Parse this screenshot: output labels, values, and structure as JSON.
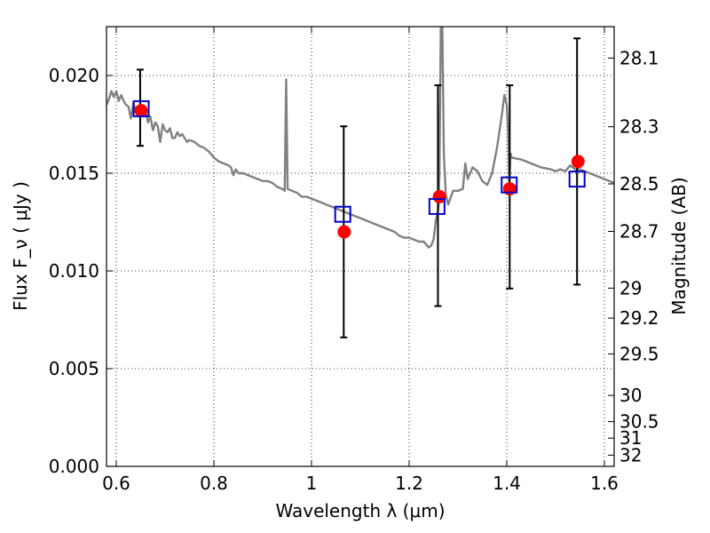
{
  "chart_data": {
    "type": "scatter",
    "title": "",
    "xlabel": "Wavelength  λ (μm)",
    "ylabel": "Flux  F_ν  ( μJy )",
    "ylabel_right": "Magnitude (AB)",
    "xlim": [
      0.58,
      1.62
    ],
    "ylim": [
      0.0,
      0.0225
    ],
    "grid": true,
    "legend": "none",
    "x_ticks": [
      {
        "value": 0.6,
        "label": "0.6"
      },
      {
        "value": 0.8,
        "label": "0.8"
      },
      {
        "value": 1.0,
        "label": "1"
      },
      {
        "value": 1.2,
        "label": "1.2"
      },
      {
        "value": 1.4,
        "label": "1.4"
      },
      {
        "value": 1.6,
        "label": "1.6"
      }
    ],
    "y_ticks": [
      {
        "value": 0.0,
        "label": "0.000"
      },
      {
        "value": 0.005,
        "label": "0.005"
      },
      {
        "value": 0.01,
        "label": "0.010"
      },
      {
        "value": 0.015,
        "label": "0.015"
      },
      {
        "value": 0.02,
        "label": "0.020"
      }
    ],
    "mag_ticks": [
      {
        "value": 28.1,
        "label": "28.1"
      },
      {
        "value": 28.3,
        "label": "28.3"
      },
      {
        "value": 28.5,
        "label": "28.5"
      },
      {
        "value": 28.7,
        "label": "28.7"
      },
      {
        "value": 29.0,
        "label": "29"
      },
      {
        "value": 29.2,
        "label": "29.2"
      },
      {
        "value": 29.5,
        "label": "29.5"
      },
      {
        "value": 30.0,
        "label": "30"
      },
      {
        "value": 30.5,
        "label": "30.5"
      },
      {
        "value": 31.0,
        "label": "31"
      },
      {
        "value": 32.0,
        "label": "32"
      }
    ],
    "series": [
      {
        "kind": "line",
        "color": "#808080",
        "points": [
          [
            0.58,
            0.0185
          ],
          [
            0.585,
            0.0188
          ],
          [
            0.59,
            0.0192
          ],
          [
            0.595,
            0.0189
          ],
          [
            0.6,
            0.0192
          ],
          [
            0.605,
            0.0187
          ],
          [
            0.61,
            0.019
          ],
          [
            0.615,
            0.0187
          ],
          [
            0.62,
            0.0185
          ],
          [
            0.625,
            0.0184
          ],
          [
            0.63,
            0.0178
          ],
          [
            0.635,
            0.0186
          ],
          [
            0.64,
            0.0182
          ],
          [
            0.645,
            0.018
          ],
          [
            0.65,
            0.0183
          ],
          [
            0.655,
            0.0179
          ],
          [
            0.66,
            0.0182
          ],
          [
            0.665,
            0.0176
          ],
          [
            0.67,
            0.0179
          ],
          [
            0.675,
            0.0172
          ],
          [
            0.68,
            0.0176
          ],
          [
            0.685,
            0.0174
          ],
          [
            0.69,
            0.0166
          ],
          [
            0.695,
            0.0175
          ],
          [
            0.7,
            0.0172
          ],
          [
            0.705,
            0.0171
          ],
          [
            0.71,
            0.0173
          ],
          [
            0.715,
            0.0168
          ],
          [
            0.72,
            0.0168
          ],
          [
            0.725,
            0.0171
          ],
          [
            0.73,
            0.0169
          ],
          [
            0.735,
            0.017
          ],
          [
            0.74,
            0.0168
          ],
          [
            0.745,
            0.0166
          ],
          [
            0.75,
            0.0167
          ],
          [
            0.76,
            0.0166
          ],
          [
            0.77,
            0.0164
          ],
          [
            0.78,
            0.0163
          ],
          [
            0.79,
            0.0161
          ],
          [
            0.8,
            0.0158
          ],
          [
            0.81,
            0.0156
          ],
          [
            0.82,
            0.0155
          ],
          [
            0.83,
            0.0154
          ],
          [
            0.835,
            0.0153
          ],
          [
            0.84,
            0.0149
          ],
          [
            0.845,
            0.0152
          ],
          [
            0.85,
            0.015
          ],
          [
            0.86,
            0.015
          ],
          [
            0.87,
            0.0149
          ],
          [
            0.88,
            0.0148
          ],
          [
            0.89,
            0.0147
          ],
          [
            0.9,
            0.0146
          ],
          [
            0.91,
            0.0146
          ],
          [
            0.92,
            0.0145
          ],
          [
            0.93,
            0.0143
          ],
          [
            0.94,
            0.0142
          ],
          [
            0.945,
            0.0141
          ],
          [
            0.948,
            0.0198
          ],
          [
            0.951,
            0.0142
          ],
          [
            0.96,
            0.0141
          ],
          [
            0.97,
            0.014
          ],
          [
            0.98,
            0.0138
          ],
          [
            0.99,
            0.0138
          ],
          [
            1.0,
            0.0137
          ],
          [
            1.01,
            0.0136
          ],
          [
            1.02,
            0.0135
          ],
          [
            1.03,
            0.0134
          ],
          [
            1.04,
            0.0133
          ],
          [
            1.05,
            0.0132
          ],
          [
            1.06,
            0.0131
          ],
          [
            1.07,
            0.013
          ],
          [
            1.08,
            0.0129
          ],
          [
            1.09,
            0.0128
          ],
          [
            1.1,
            0.0127
          ],
          [
            1.11,
            0.0126
          ],
          [
            1.12,
            0.0125
          ],
          [
            1.13,
            0.0124
          ],
          [
            1.14,
            0.0123
          ],
          [
            1.15,
            0.0122
          ],
          [
            1.16,
            0.0121
          ],
          [
            1.17,
            0.012
          ],
          [
            1.18,
            0.0118
          ],
          [
            1.19,
            0.0117
          ],
          [
            1.2,
            0.0117
          ],
          [
            1.21,
            0.0116
          ],
          [
            1.22,
            0.0115
          ],
          [
            1.23,
            0.0115
          ],
          [
            1.24,
            0.0112
          ],
          [
            1.245,
            0.0113
          ],
          [
            1.25,
            0.0116
          ],
          [
            1.255,
            0.0126
          ],
          [
            1.26,
            0.0132
          ],
          [
            1.262,
            0.015
          ],
          [
            1.265,
            0.0225
          ],
          [
            1.268,
            0.0225
          ],
          [
            1.271,
            0.016
          ],
          [
            1.275,
            0.0139
          ],
          [
            1.28,
            0.0134
          ],
          [
            1.29,
            0.0141
          ],
          [
            1.3,
            0.0141
          ],
          [
            1.31,
            0.0142
          ],
          [
            1.315,
            0.0155
          ],
          [
            1.32,
            0.0147
          ],
          [
            1.33,
            0.0153
          ],
          [
            1.34,
            0.0151
          ],
          [
            1.35,
            0.0146
          ],
          [
            1.36,
            0.0144
          ],
          [
            1.37,
            0.015
          ],
          [
            1.38,
            0.0163
          ],
          [
            1.39,
            0.018
          ],
          [
            1.395,
            0.019
          ],
          [
            1.4,
            0.0185
          ],
          [
            1.403,
            0.017
          ],
          [
            1.405,
            0.0145
          ],
          [
            1.408,
            0.016
          ],
          [
            1.41,
            0.0158
          ],
          [
            1.43,
            0.0157
          ],
          [
            1.45,
            0.0155
          ],
          [
            1.47,
            0.0153
          ],
          [
            1.49,
            0.0152
          ],
          [
            1.5,
            0.0151
          ],
          [
            1.51,
            0.0152
          ],
          [
            1.52,
            0.0151
          ],
          [
            1.53,
            0.0154
          ],
          [
            1.54,
            0.0152
          ],
          [
            1.55,
            0.0152
          ],
          [
            1.56,
            0.0151
          ],
          [
            1.57,
            0.015
          ],
          [
            1.58,
            0.0149
          ],
          [
            1.59,
            0.0148
          ],
          [
            1.6,
            0.0147
          ],
          [
            1.61,
            0.0146
          ],
          [
            1.62,
            0.0145
          ]
        ]
      },
      {
        "kind": "errorbar",
        "color": "#000000",
        "points": [
          {
            "x": 0.649,
            "lo": 0.0164,
            "hi": 0.0203
          },
          {
            "x": 1.066,
            "lo": 0.0066,
            "hi": 0.0174
          },
          {
            "x": 1.259,
            "lo": 0.0082,
            "hi": 0.0195
          },
          {
            "x": 1.406,
            "lo": 0.0091,
            "hi": 0.0195
          },
          {
            "x": 1.544,
            "lo": 0.0093,
            "hi": 0.0219
          }
        ]
      },
      {
        "kind": "square",
        "color": "#0000cc",
        "points": [
          [
            0.651,
            0.0183
          ],
          [
            1.064,
            0.0129
          ],
          [
            1.257,
            0.0133
          ],
          [
            1.405,
            0.0144
          ],
          [
            1.544,
            0.0147
          ]
        ]
      },
      {
        "kind": "circle",
        "color": "#ff0000",
        "points": [
          [
            0.651,
            0.0182
          ],
          [
            1.067,
            0.012
          ],
          [
            1.262,
            0.0138
          ],
          [
            1.406,
            0.0142
          ],
          [
            1.546,
            0.0156
          ]
        ]
      }
    ]
  }
}
